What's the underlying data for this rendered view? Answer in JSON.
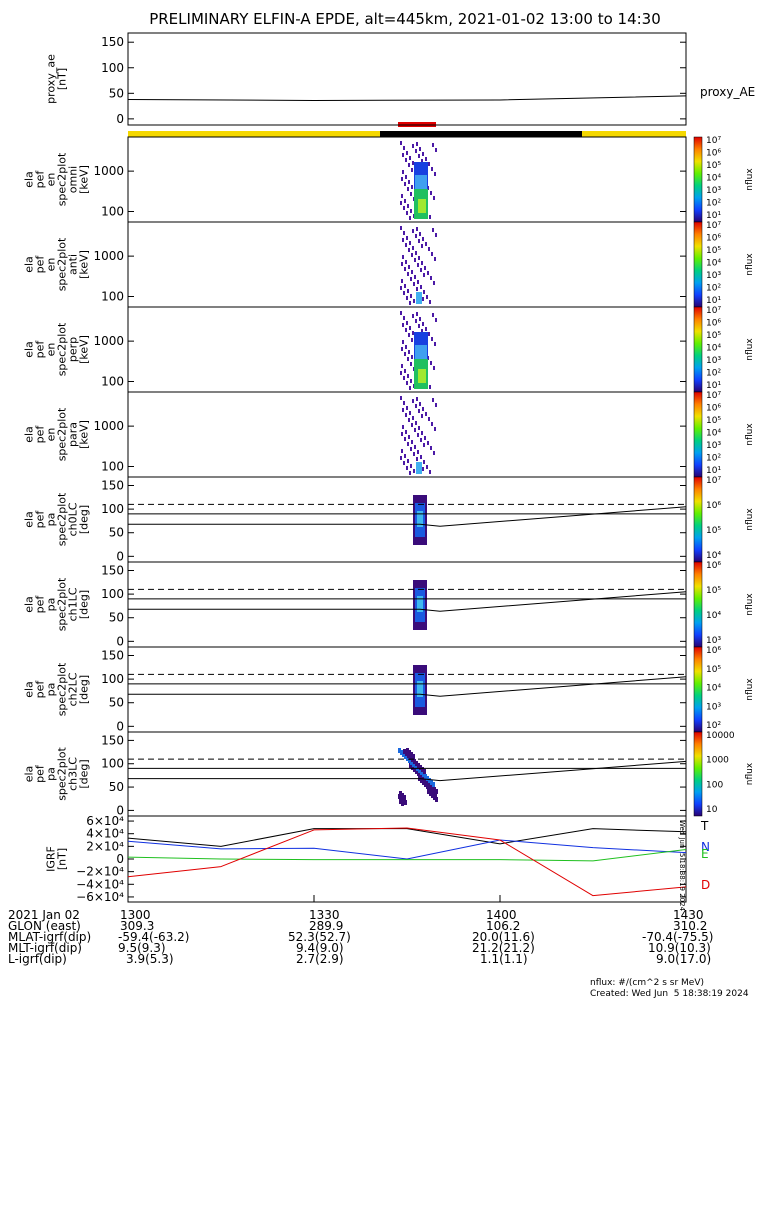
{
  "title": "PRELIMINARY ELFIN-A EPDE, alt=445km, 2021-01-02 13:00 to 14:30",
  "panels": [
    {
      "ylabel": [
        "proxy_ae",
        "[nT]"
      ],
      "yticks": [
        "150",
        "100",
        "50",
        "0"
      ],
      "legend": "proxy_AE"
    },
    {
      "ylabel": [
        "ela",
        "pef",
        "en",
        "spec2plot",
        "omni",
        "[keV]"
      ],
      "yticks": [
        "1000",
        "100"
      ],
      "cbar_unit": "nflux"
    },
    {
      "ylabel": [
        "ela",
        "pef",
        "en",
        "spec2plot",
        "anti",
        "[keV]"
      ],
      "yticks": [
        "1000",
        "100"
      ],
      "cbar_unit": "nflux"
    },
    {
      "ylabel": [
        "ela",
        "pef",
        "en",
        "spec2plot",
        "perp",
        "[keV]"
      ],
      "yticks": [
        "1000",
        "100"
      ],
      "cbar_unit": "nflux"
    },
    {
      "ylabel": [
        "ela",
        "pef",
        "en",
        "spec2plot",
        "para",
        "[keV]"
      ],
      "yticks": [
        "1000",
        "100"
      ],
      "cbar_unit": "nflux"
    },
    {
      "ylabel": [
        "ela",
        "pef",
        "pa",
        "spec2plot",
        "ch0LC",
        "[deg]"
      ],
      "yticks": [
        "150",
        "100",
        "50",
        "0"
      ],
      "cbar_unit": "nflux"
    },
    {
      "ylabel": [
        "ela",
        "pef",
        "pa",
        "spec2plot",
        "ch1LC",
        "[deg]"
      ],
      "yticks": [
        "150",
        "100",
        "50",
        "0"
      ],
      "cbar_unit": "nflux"
    },
    {
      "ylabel": [
        "ela",
        "pef",
        "pa",
        "spec2plot",
        "ch2LC",
        "[deg]"
      ],
      "yticks": [
        "150",
        "100",
        "50",
        "0"
      ],
      "cbar_unit": "nflux"
    },
    {
      "ylabel": [
        "ela",
        "pef",
        "pa",
        "spec2plot",
        "ch3LC",
        "[deg]"
      ],
      "yticks": [
        "150",
        "100",
        "50",
        "0"
      ],
      "cbar_unit": "nflux"
    },
    {
      "ylabel": [
        "IGRF",
        "[nT]"
      ],
      "yticks": [
        "6×10⁴",
        "4×10⁴",
        "2×10⁴",
        "0",
        "−2×10⁴",
        "−4×10⁴",
        "−6×10⁴"
      ],
      "legend_T": "T",
      "legend_N": "N",
      "legend_E": "E",
      "legend_D": "D"
    }
  ],
  "colorbars": [
    [
      "10⁷",
      "10⁶",
      "10⁵",
      "10⁴",
      "10³",
      "10²",
      "10¹"
    ],
    [
      "10⁷",
      "10⁶",
      "10⁵",
      "10⁴",
      "10³",
      "10²",
      "10¹"
    ],
    [
      "10⁷",
      "10⁶",
      "10⁵",
      "10⁴",
      "10³",
      "10²",
      "10¹"
    ],
    [
      "10⁷",
      "10⁶",
      "10⁵",
      "10⁴",
      "10³",
      "10²",
      "10¹"
    ],
    [
      "10⁷",
      "10⁶",
      "10⁵",
      "10⁴"
    ],
    [
      "10⁶",
      "10⁵",
      "10⁴",
      "10³"
    ],
    [
      "10⁶",
      "10⁵",
      "10⁴",
      "10³",
      "10²"
    ],
    [
      "10000",
      "1000",
      "100",
      "10"
    ]
  ],
  "footer": {
    "rows": [
      [
        "2021 Jan 02",
        "1300",
        "1330",
        "1400",
        "1430"
      ],
      [
        "GLON (east)",
        "309.3",
        "289.9",
        "106.2",
        "310.2"
      ],
      [
        "MLAT-igrf(dip)",
        "-59.4(-63.2)",
        "52.3(52.7)",
        "20.0(11.6)",
        "-70.4(-75.5)"
      ],
      [
        "MLT-igrf(dip)",
        "9.5(9.3)",
        "9.4(9.0)",
        "21.2(21.2)",
        "10.9(10.3)"
      ],
      [
        "L-igrf(dip)",
        "3.9(5.3)",
        "2.7(2.9)",
        "1.1(1.1)",
        "9.0(17.0)"
      ]
    ],
    "nflux_note": "nflux: #/(cm^2 s sr MeV)",
    "created": "Created: Wed Jun  5 18:38:19 2024",
    "side_stamp": "Wed Jun  5 18:38:19 2024"
  },
  "chart_data": {
    "type": "line",
    "title": "PRELIMINARY ELFIN-A EPDE, alt=445km, 2021-01-02 13:00 to 14:30",
    "x_ticks": [
      "1300",
      "1330",
      "1400",
      "1430"
    ],
    "proxy_ae": {
      "x": [
        "13:00",
        "13:30",
        "14:00",
        "14:30"
      ],
      "y": [
        38,
        36,
        37,
        45
      ],
      "ylim": [
        0,
        150
      ]
    },
    "igrf": {
      "x": [
        "13:00",
        "13:15",
        "13:30",
        "13:45",
        "14:00",
        "14:15",
        "14:30"
      ],
      "T": [
        33000,
        20000,
        48000,
        48000,
        24000,
        48000,
        43000
      ],
      "N": [
        28000,
        16000,
        17000,
        0,
        30000,
        18000,
        10000
      ],
      "E": [
        3000,
        0,
        -1000,
        -1000,
        -1000,
        -3000,
        15000
      ],
      "D": [
        -28000,
        -12000,
        46000,
        49000,
        30000,
        -58000,
        -44000
      ],
      "ylim": [
        -60000,
        60000
      ]
    },
    "lc_lines": {
      "dashed": 110,
      "solid_upper": 90,
      "solid_lower_start": 68,
      "solid_lower_end": 105
    }
  }
}
